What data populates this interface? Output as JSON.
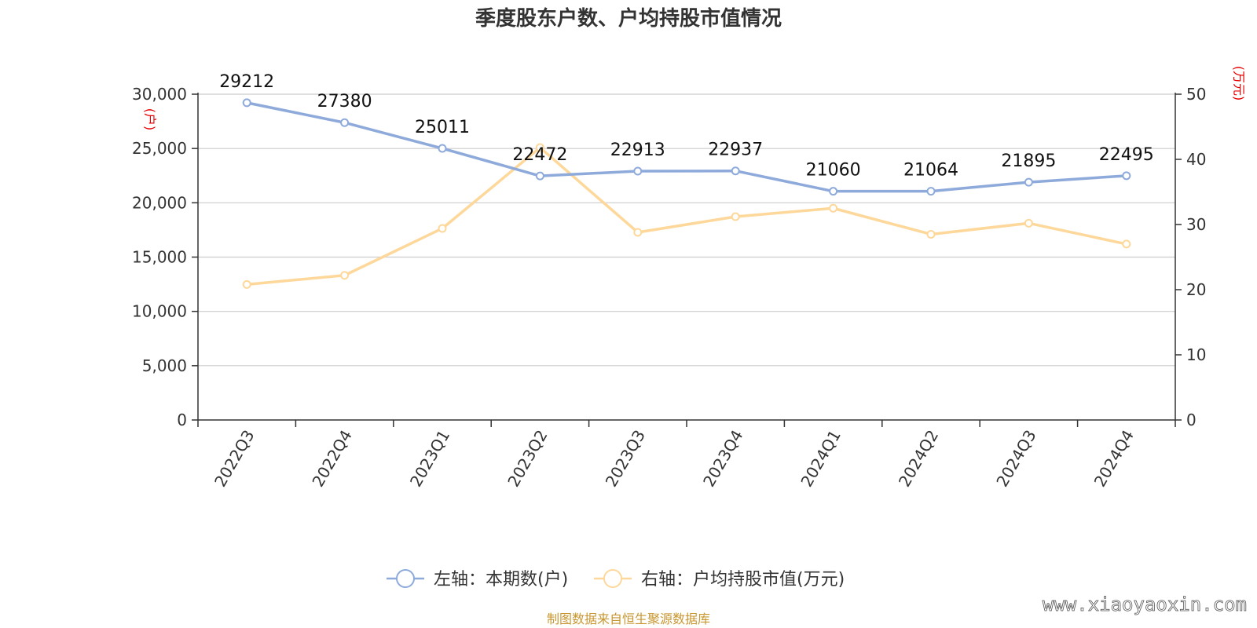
{
  "chart_data": {
    "type": "line",
    "title": "季度股东户数、户均持股市值情况",
    "categories": [
      "2022Q3",
      "2022Q4",
      "2023Q1",
      "2023Q2",
      "2023Q3",
      "2023Q4",
      "2024Q1",
      "2024Q2",
      "2024Q3",
      "2024Q4"
    ],
    "y_left": {
      "unit": "(户)",
      "range": [
        0,
        30000
      ],
      "ticks": [
        "0",
        "5,000",
        "10,000",
        "15,000",
        "20,000",
        "25,000",
        "30,000"
      ],
      "tick_values": [
        0,
        5000,
        10000,
        15000,
        20000,
        25000,
        30000
      ]
    },
    "y_right": {
      "unit": "(万元)",
      "range": [
        0,
        50
      ],
      "ticks": [
        "0",
        "10",
        "20",
        "30",
        "40",
        "50"
      ],
      "tick_values": [
        0,
        10,
        20,
        30,
        40,
        50
      ]
    },
    "grid": true,
    "legend_position": "bottom",
    "series": [
      {
        "name": "左轴：本期数(户)",
        "axis": "left",
        "color": "#8eaadb",
        "values": [
          29212,
          27380,
          25011,
          22472,
          22913,
          22937,
          21060,
          21064,
          21895,
          22495
        ],
        "labels": [
          "29212",
          "27380",
          "25011",
          "22472",
          "22913",
          "22937",
          "21060",
          "21064",
          "21895",
          "22495"
        ]
      },
      {
        "name": "右轴：户均持股市值(万元)",
        "axis": "right",
        "color": "#fdd89a",
        "values": [
          20.8,
          22.2,
          29.4,
          41.8,
          28.8,
          31.2,
          32.5,
          28.5,
          30.2,
          27.0
        ]
      }
    ]
  },
  "footer": {
    "source": "制图数据来自恒生聚源数据库",
    "watermark": "www.xiaoyaoxin.com"
  }
}
